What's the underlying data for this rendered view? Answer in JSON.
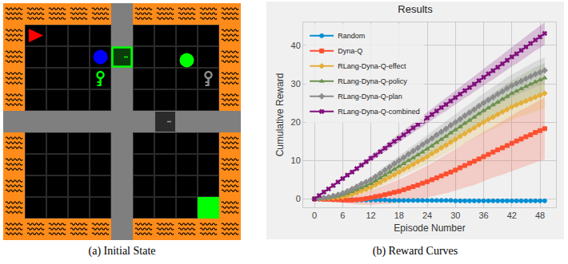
{
  "captions": [
    "(a) Initial State",
    "(b) Reward Curves"
  ],
  "chart_data": {
    "type": "line",
    "title": "Results",
    "x_label": "Episode Number",
    "y_label": "Cumulative Reward",
    "x": [
      0,
      1,
      2,
      3,
      4,
      5,
      6,
      7,
      8,
      9,
      10,
      11,
      12,
      13,
      14,
      15,
      16,
      17,
      18,
      19,
      20,
      21,
      22,
      23,
      24,
      25,
      26,
      27,
      28,
      29,
      30,
      31,
      32,
      33,
      34,
      35,
      36,
      37,
      38,
      39,
      40,
      41,
      42,
      43,
      44,
      45,
      46,
      47,
      48,
      49
    ],
    "xlim": [
      -2.4,
      51.4
    ],
    "xticks": [
      0,
      6,
      12,
      18,
      24,
      30,
      36,
      42,
      48
    ],
    "ylim": [
      -2.2,
      46
    ],
    "yticks": [
      0,
      10,
      20,
      30,
      40
    ],
    "grid": true,
    "legend": "upper left",
    "series": [
      {
        "name": "Random",
        "color": "#008fd5",
        "marker": "circle",
        "values": [
          0,
          0,
          -0.1,
          -0.1,
          -0.1,
          -0.2,
          -0.2,
          -0.2,
          -0.2,
          -0.3,
          -0.3,
          -0.3,
          -0.3,
          -0.3,
          -0.3,
          -0.3,
          -0.4,
          -0.4,
          -0.4,
          -0.4,
          -0.4,
          -0.4,
          -0.4,
          -0.4,
          -0.4,
          -0.4,
          -0.4,
          -0.4,
          -0.4,
          -0.4,
          -0.5,
          -0.5,
          -0.5,
          -0.5,
          -0.5,
          -0.5,
          -0.5,
          -0.5,
          -0.5,
          -0.5,
          -0.5,
          -0.5,
          -0.5,
          -0.5,
          -0.5,
          -0.5,
          -0.5,
          -0.5,
          -0.5,
          -0.5
        ],
        "error": [
          0.2,
          0.2,
          0.2,
          0.2,
          0.2,
          0.2,
          0.2,
          0.2,
          0.2,
          0.2,
          0.2,
          0.2,
          0.2,
          0.2,
          0.2,
          0.2,
          0.2,
          0.2,
          0.2,
          0.2,
          0.2,
          0.2,
          0.2,
          0.2,
          0.2,
          0.2,
          0.2,
          0.2,
          0.2,
          0.2,
          0.2,
          0.2,
          0.2,
          0.2,
          0.2,
          0.2,
          0.2,
          0.2,
          0.2,
          0.2,
          0.2,
          0.2,
          0.2,
          0.2,
          0.2,
          0.2,
          0.2,
          0.2,
          0.2,
          0.2
        ]
      },
      {
        "name": "Dyna-Q",
        "color": "#fc4f30",
        "marker": "square",
        "values": [
          0,
          0,
          -0.1,
          -0.1,
          -0.2,
          -0.2,
          -0.3,
          -0.3,
          -0.3,
          -0.2,
          -0.1,
          0.1,
          0.3,
          0.6,
          0.8,
          1.1,
          1.4,
          1.7,
          2.0,
          2.4,
          2.8,
          3.2,
          3.6,
          4.1,
          4.5,
          5.0,
          5.5,
          6.0,
          6.5,
          7.0,
          7.5,
          8.1,
          8.7,
          9.3,
          9.8,
          10.4,
          11.0,
          11.6,
          12.2,
          12.8,
          13.3,
          13.9,
          14.5,
          15.1,
          15.6,
          16.2,
          16.7,
          17.3,
          17.8,
          18.3
        ],
        "error": [
          0,
          0.1,
          0.2,
          0.3,
          0.4,
          0.5,
          0.6,
          0.8,
          1.0,
          1.2,
          1.4,
          1.6,
          1.8,
          2.0,
          2.2,
          2.4,
          2.6,
          2.8,
          3.0,
          3.2,
          3.4,
          3.6,
          3.8,
          4.0,
          4.2,
          4.4,
          4.6,
          4.8,
          5.0,
          5.2,
          5.4,
          5.6,
          5.8,
          6.0,
          6.2,
          6.3,
          6.4,
          6.5,
          6.6,
          6.8,
          7.0,
          7.1,
          7.2,
          7.4,
          7.5,
          7.6,
          7.7,
          7.8,
          7.9,
          8.0
        ]
      },
      {
        "name": "RLang-Dyna-Q-effect",
        "color": "#e5ae38",
        "marker": "diamond",
        "values": [
          0,
          0,
          0.1,
          0.2,
          0.3,
          0.4,
          0.5,
          0.8,
          1.2,
          1.6,
          2.1,
          2.5,
          3.0,
          3.7,
          4.3,
          5.0,
          5.7,
          6.3,
          7.0,
          7.7,
          8.3,
          9.0,
          9.7,
          10.3,
          11.0,
          11.8,
          12.5,
          13.3,
          14.0,
          14.8,
          15.5,
          16.3,
          17.0,
          17.8,
          18.5,
          19.3,
          20.0,
          20.7,
          21.3,
          22.0,
          22.7,
          23.3,
          24.0,
          24.5,
          25.0,
          25.5,
          26.0,
          26.5,
          27.0,
          27.5
        ],
        "error": [
          0,
          0.1,
          0.2,
          0.2,
          0.3,
          0.4,
          0.5,
          0.6,
          0.6,
          0.7,
          0.8,
          0.9,
          1.0,
          1.0,
          1.1,
          1.2,
          1.3,
          1.4,
          1.4,
          1.5,
          1.6,
          1.7,
          1.8,
          1.8,
          1.9,
          2.0,
          2.1,
          2.2,
          2.2,
          2.3,
          2.4,
          2.5,
          2.6,
          2.6,
          2.7,
          2.8,
          2.9,
          3.0,
          3.0,
          3.1,
          3.2,
          3.3,
          3.4,
          3.4,
          3.5,
          3.6,
          3.7,
          3.8,
          3.8,
          3.9
        ]
      },
      {
        "name": "RLang-Dyna-Q-policy",
        "color": "#6d904f",
        "marker": "triangle",
        "values": [
          0,
          0.1,
          0.2,
          0.3,
          0.5,
          0.7,
          1.0,
          1.4,
          1.9,
          2.4,
          2.9,
          3.4,
          4.0,
          4.7,
          5.5,
          6.2,
          7.0,
          7.7,
          8.5,
          9.2,
          10.0,
          10.7,
          11.5,
          12.2,
          13.0,
          13.8,
          14.7,
          15.5,
          16.3,
          17.2,
          18.0,
          18.8,
          19.7,
          20.5,
          21.3,
          22.2,
          23.0,
          23.7,
          24.5,
          25.2,
          26.0,
          26.7,
          27.5,
          28.1,
          28.7,
          29.3,
          29.9,
          30.5,
          31.0,
          31.5
        ],
        "error": [
          0,
          0.1,
          0.2,
          0.2,
          0.3,
          0.4,
          0.5,
          0.6,
          0.6,
          0.7,
          0.8,
          0.9,
          1.0,
          1.0,
          1.1,
          1.2,
          1.3,
          1.4,
          1.4,
          1.5,
          1.6,
          1.7,
          1.8,
          1.8,
          1.9,
          2.0,
          2.1,
          2.2,
          2.2,
          2.3,
          2.4,
          2.5,
          2.6,
          2.6,
          2.7,
          2.8,
          2.9,
          3.0,
          3.0,
          3.1,
          3.2,
          3.3,
          3.4,
          3.4,
          3.5,
          3.6,
          3.7,
          3.8,
          3.8,
          3.9
        ]
      },
      {
        "name": "RLang-Dyna-Q-plan",
        "color": "#8b8b8b",
        "marker": "plus",
        "values": [
          0,
          0.1,
          0.3,
          0.5,
          0.8,
          1.1,
          1.5,
          2.0,
          2.6,
          3.2,
          3.9,
          4.4,
          5.0,
          5.8,
          6.6,
          7.5,
          8.3,
          9.2,
          10.0,
          10.8,
          11.7,
          12.5,
          13.3,
          14.2,
          15.0,
          15.8,
          16.7,
          17.5,
          18.3,
          19.2,
          20.0,
          20.8,
          21.7,
          22.5,
          23.3,
          24.2,
          25.0,
          25.8,
          26.5,
          27.3,
          28.0,
          28.8,
          29.5,
          30.1,
          30.7,
          31.3,
          31.9,
          32.5,
          33.0,
          33.5
        ],
        "error": [
          0,
          0.1,
          0.1,
          0.2,
          0.3,
          0.4,
          0.4,
          0.5,
          0.6,
          0.6,
          0.7,
          0.8,
          0.8,
          0.9,
          1.0,
          1.1,
          1.1,
          1.2,
          1.3,
          1.3,
          1.4,
          1.5,
          1.5,
          1.6,
          1.7,
          1.8,
          1.8,
          1.9,
          2.0,
          2.0,
          2.1,
          2.2,
          2.2,
          2.3,
          2.4,
          2.5,
          2.5,
          2.6,
          2.7,
          2.7,
          2.8,
          2.9,
          2.9,
          3.0,
          3.1,
          3.2,
          3.2,
          3.3,
          3.4,
          3.4
        ]
      },
      {
        "name": "RLang-Dyna-Q-combined",
        "color": "#810f7c",
        "marker": "x",
        "values": [
          0,
          0.9,
          1.8,
          2.6,
          3.5,
          4.4,
          5.3,
          6.2,
          7.0,
          7.9,
          8.8,
          9.7,
          10.6,
          11.4,
          12.3,
          13.2,
          14.1,
          15.0,
          15.8,
          16.7,
          17.6,
          18.5,
          19.4,
          20.2,
          21.1,
          22.0,
          22.9,
          23.8,
          24.6,
          25.5,
          26.4,
          27.3,
          28.2,
          29.0,
          29.9,
          30.8,
          31.7,
          32.6,
          33.4,
          34.3,
          35.2,
          36.1,
          37.0,
          37.8,
          38.7,
          39.6,
          40.5,
          41.4,
          42.2,
          43.1
        ],
        "error": [
          0,
          0.1,
          0.1,
          0.2,
          0.2,
          0.3,
          0.4,
          0.4,
          0.5,
          0.5,
          0.6,
          0.7,
          0.7,
          0.8,
          0.8,
          0.9,
          1.0,
          1.0,
          1.1,
          1.1,
          1.2,
          1.3,
          1.3,
          1.4,
          1.4,
          1.5,
          1.6,
          1.6,
          1.7,
          1.7,
          1.8,
          1.9,
          1.9,
          2.0,
          2.0,
          2.1,
          2.2,
          2.2,
          2.3,
          2.3,
          2.4,
          2.5,
          2.5,
          2.6,
          2.6,
          2.7,
          2.8,
          2.8,
          2.9,
          2.9
        ]
      }
    ]
  }
}
